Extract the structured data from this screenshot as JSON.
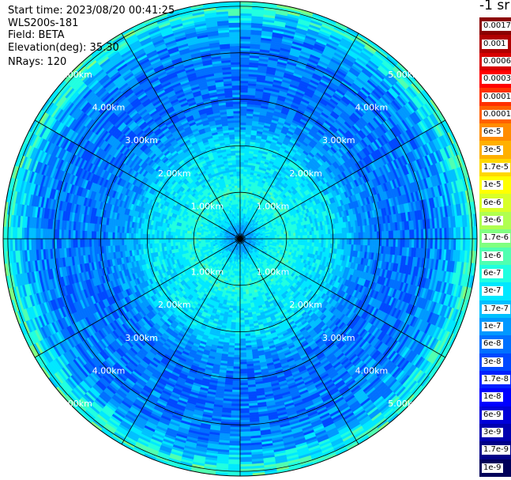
{
  "header": {
    "start_time": "Start time: 2023/08/20 00:41:25",
    "instrument": "WLS200s-181",
    "field": "Field: BETA",
    "elevation": "Elevation(deg): 35.30",
    "nrays": "NRays: 120"
  },
  "colorbar": {
    "title": "-1 sr",
    "levels": [
      {
        "label": "0.0017",
        "color": "#8b0000"
      },
      {
        "label": "0.001",
        "color": "#b00000"
      },
      {
        "label": "0.0006",
        "color": "#d80000"
      },
      {
        "label": "0.0003",
        "color": "#ff0000"
      },
      {
        "label": "0.00017",
        "color": "#ff3000"
      },
      {
        "label": "0.0001",
        "color": "#ff6000"
      },
      {
        "label": "6e-5",
        "color": "#ff8c00"
      },
      {
        "label": "3e-5",
        "color": "#ffb000"
      },
      {
        "label": "1.7e-5",
        "color": "#ffd700"
      },
      {
        "label": "1e-5",
        "color": "#ffff00"
      },
      {
        "label": "6e-6",
        "color": "#d8ff28"
      },
      {
        "label": "3e-6",
        "color": "#b0ff50"
      },
      {
        "label": "1.7e-6",
        "color": "#80ff80"
      },
      {
        "label": "1e-6",
        "color": "#50ffb0"
      },
      {
        "label": "6e-7",
        "color": "#20ffe0"
      },
      {
        "label": "3e-7",
        "color": "#00e8ff"
      },
      {
        "label": "1.7e-7",
        "color": "#00c0ff"
      },
      {
        "label": "1e-7",
        "color": "#0098ff"
      },
      {
        "label": "6e-8",
        "color": "#0070ff"
      },
      {
        "label": "3e-8",
        "color": "#0048ff"
      },
      {
        "label": "1.7e-8",
        "color": "#0020ff"
      },
      {
        "label": "1e-8",
        "color": "#0000ff"
      },
      {
        "label": "6e-9",
        "color": "#0000d8"
      },
      {
        "label": "3e-9",
        "color": "#0000b0"
      },
      {
        "label": "1.7e-9",
        "color": "#000088"
      },
      {
        "label": "1e-9",
        "color": "#00005a"
      }
    ]
  },
  "chart_data": {
    "type": "heatmap",
    "projection": "polar PPI scan",
    "field": "BETA",
    "units": "-1 sr",
    "range_rings_km": [
      1.0,
      2.0,
      3.0,
      4.0,
      5.0
    ],
    "ring_labels": [
      "1.00km",
      "2.00km",
      "3.00km",
      "4.00km",
      "5.00km"
    ],
    "max_range_km": 5.1,
    "ray_count": 120,
    "azimuth_spokes_deg": [
      0,
      30,
      60,
      90,
      120,
      150,
      180,
      210,
      240,
      270,
      300,
      330
    ],
    "value_profile_by_range_km": [
      {
        "range_km": 0.2,
        "beta": 1e-07
      },
      {
        "range_km": 0.5,
        "beta": 3e-07
      },
      {
        "range_km": 1.0,
        "beta": 6e-07
      },
      {
        "range_km": 1.5,
        "beta": 3e-07
      },
      {
        "range_km": 2.0,
        "beta": 3e-07
      },
      {
        "range_km": 2.5,
        "beta": 1e-07
      },
      {
        "range_km": 3.0,
        "beta": 6e-08
      },
      {
        "range_km": 3.5,
        "beta": 6e-08
      },
      {
        "range_km": 4.0,
        "beta": 6e-08
      },
      {
        "range_km": 4.5,
        "beta": 1e-07
      },
      {
        "range_km": 5.0,
        "beta": 6e-07
      }
    ],
    "value_range": [
      1e-09,
      0.0017
    ],
    "grid": true
  }
}
